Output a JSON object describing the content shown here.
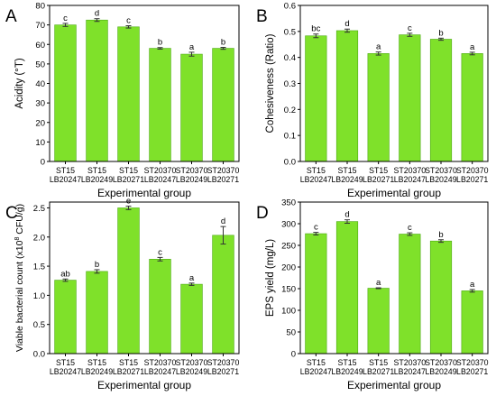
{
  "chart_data": [
    {
      "panel": "A",
      "type": "bar",
      "categories": [
        [
          "ST15",
          "LB20247"
        ],
        [
          "ST15",
          "LB20249"
        ],
        [
          "ST15",
          "LB20271"
        ],
        [
          "ST20370",
          "LB20247"
        ],
        [
          "ST20370",
          "LB20249"
        ],
        [
          "ST20370",
          "LB20271"
        ]
      ],
      "values": [
        70,
        72.5,
        69,
        58,
        55,
        58
      ],
      "errors": [
        0.8,
        0.7,
        0.6,
        0.4,
        1.0,
        0.5
      ],
      "letters": [
        "c",
        "d",
        "c",
        "b",
        "a",
        "b"
      ],
      "ylabel": "Acidity (°T)",
      "xlabel": "Experimental group",
      "ylim": [
        0,
        80
      ],
      "yticks": [
        0,
        10,
        20,
        30,
        40,
        50,
        60,
        70,
        80
      ],
      "ytick_labels": [
        "0",
        "10",
        "20",
        "30",
        "40",
        "50",
        "60",
        "70",
        "80"
      ]
    },
    {
      "panel": "B",
      "type": "bar",
      "categories": [
        [
          "ST15",
          "LB20247"
        ],
        [
          "ST15",
          "LB20249"
        ],
        [
          "ST15",
          "LB20271"
        ],
        [
          "ST20370",
          "LB20247"
        ],
        [
          "ST20370",
          "LB20249"
        ],
        [
          "ST20370",
          "LB20271"
        ]
      ],
      "values": [
        0.483,
        0.503,
        0.415,
        0.487,
        0.47,
        0.415
      ],
      "errors": [
        0.007,
        0.006,
        0.006,
        0.006,
        0.004,
        0.005
      ],
      "letters": [
        "bc",
        "d",
        "a",
        "c",
        "b",
        "a"
      ],
      "ylabel": "Cohesiveness (Ratio)",
      "xlabel": "Experimental group",
      "ylim": [
        0,
        0.6
      ],
      "yticks": [
        0,
        0.1,
        0.2,
        0.3,
        0.4,
        0.5,
        0.6
      ],
      "ytick_labels": [
        "0.0",
        "0.1",
        "0.2",
        "0.3",
        "0.4",
        "0.5",
        "0.6"
      ]
    },
    {
      "panel": "C",
      "type": "bar",
      "categories": [
        [
          "ST15",
          "LB20247"
        ],
        [
          "ST15",
          "LB20249"
        ],
        [
          "ST15",
          "LB20271"
        ],
        [
          "ST20370",
          "LB20247"
        ],
        [
          "ST20370",
          "LB20249"
        ],
        [
          "ST20370",
          "LB20271"
        ]
      ],
      "values": [
        1.26,
        1.41,
        2.5,
        1.62,
        1.19,
        2.03
      ],
      "errors": [
        0.02,
        0.03,
        0.03,
        0.03,
        0.02,
        0.15
      ],
      "letters": [
        "ab",
        "b",
        "e",
        "c",
        "a",
        "d"
      ],
      "ylabel_main": "Viable bacterial count (x10",
      "ylabel_sup": "8",
      "ylabel_tail": " CFU/g)",
      "xlabel": "Experimental group",
      "ylim": [
        0,
        2.6
      ],
      "yticks": [
        0,
        0.5,
        1,
        1.5,
        2,
        2.5
      ],
      "ytick_labels": [
        "0.0",
        "0.5",
        "1.0",
        "1.5",
        "2.0",
        "2.5"
      ]
    },
    {
      "panel": "D",
      "type": "bar",
      "categories": [
        [
          "ST15",
          "LB20247"
        ],
        [
          "ST15",
          "LB20249"
        ],
        [
          "ST15",
          "LB20271"
        ],
        [
          "ST20370",
          "LB20247"
        ],
        [
          "ST20370",
          "LB20249"
        ],
        [
          "ST20370",
          "LB20271"
        ]
      ],
      "values": [
        277,
        305,
        151,
        276,
        260,
        145
      ],
      "errors": [
        3,
        4,
        1,
        3,
        3,
        3
      ],
      "letters": [
        "c",
        "d",
        "a",
        "c",
        "b",
        "a"
      ],
      "ylabel": "EPS yield (mg/L)",
      "xlabel": "Experimental group",
      "ylim": [
        0,
        350
      ],
      "yticks": [
        0,
        50,
        100,
        150,
        200,
        250,
        300,
        350
      ],
      "ytick_labels": [
        "0",
        "50",
        "100",
        "150",
        "200",
        "250",
        "300",
        "350"
      ]
    }
  ],
  "style": {
    "bar_color": "#7fe12a",
    "bar_edge": "#4caa12",
    "axis_color": "#000000"
  }
}
